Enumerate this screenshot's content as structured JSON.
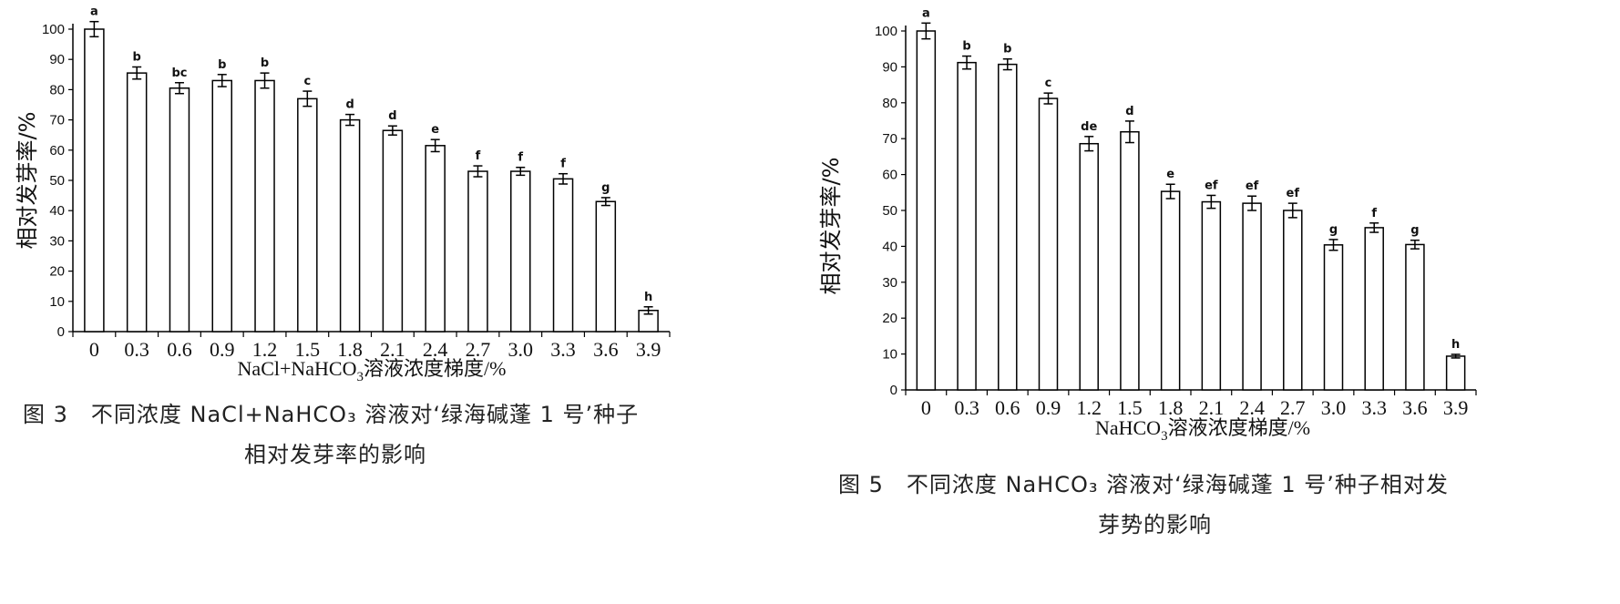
{
  "chart_data": [
    {
      "type": "bar",
      "title": "",
      "xlabel": "NaCl+NaHCO3溶液浓度梯度/%",
      "ylabel": "相对发芽率/%",
      "ylim": [
        0,
        100
      ],
      "yticks": [
        0,
        10,
        20,
        30,
        40,
        50,
        60,
        70,
        80,
        90,
        100
      ],
      "grid": false,
      "categories": [
        "0",
        "0.3",
        "0.6",
        "0.9",
        "1.2",
        "1.5",
        "1.8",
        "2.1",
        "2.4",
        "2.7",
        "3.0",
        "3.3",
        "3.6",
        "3.9"
      ],
      "values": [
        100,
        85.5,
        80.5,
        83,
        83,
        77,
        70,
        66.5,
        61.5,
        53,
        53,
        50.5,
        43,
        7
      ],
      "errors": [
        2.5,
        2,
        1.8,
        2,
        2.5,
        2.5,
        1.8,
        1.5,
        2,
        1.8,
        1.3,
        1.7,
        1.3,
        1.2
      ],
      "significance": [
        "a",
        "b",
        "bc",
        "b",
        "b",
        "c",
        "d",
        "d",
        "e",
        "f",
        "f",
        "f",
        "g",
        "h"
      ],
      "caption_line1": "图 3　不同浓度 NaCl+NaHCO₃ 溶液对‘绿海碱蓬 1 号’种子",
      "caption_line2": "相对发芽率的影响"
    },
    {
      "type": "bar",
      "title": "",
      "xlabel": "NaHCO3溶液浓度梯度/%",
      "ylabel": "相对发芽率/%",
      "ylim": [
        0,
        100
      ],
      "yticks": [
        0,
        10,
        20,
        30,
        40,
        50,
        60,
        70,
        80,
        90,
        100
      ],
      "grid": false,
      "categories": [
        "0",
        "0.3",
        "0.6",
        "0.9",
        "1.2",
        "1.5",
        "1.8",
        "2.1",
        "2.4",
        "2.7",
        "3.0",
        "3.3",
        "3.6",
        "3.9"
      ],
      "values": [
        100,
        91.2,
        90.7,
        81.2,
        68.6,
        71.9,
        55.3,
        52.4,
        52,
        50,
        40.4,
        45.2,
        40.5,
        9.4
      ],
      "errors": [
        2.2,
        1.8,
        1.5,
        1.5,
        2,
        3,
        2,
        1.8,
        2,
        2,
        1.5,
        1.3,
        1.2,
        0.5
      ],
      "significance": [
        "a",
        "b",
        "b",
        "c",
        "de",
        "d",
        "e",
        "ef",
        "ef",
        "ef",
        "g",
        "f",
        "g",
        "h"
      ],
      "caption_line1": "图 5　不同浓度 NaHCO₃ 溶液对‘绿海碱蓬 1 号’种子相对发",
      "caption_line2": "芽势的影响"
    }
  ]
}
